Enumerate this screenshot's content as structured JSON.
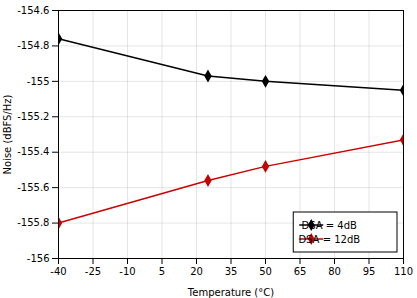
{
  "chart_data": {
    "type": "line",
    "x": [
      -40,
      25,
      50,
      110
    ],
    "series": [
      {
        "name": "DSA = 4dB",
        "color": "#000000",
        "marker": "diamond",
        "line_style": "solid",
        "values": [
          -154.76,
          -154.97,
          -155.0,
          -155.05
        ]
      },
      {
        "name": "DSA = 12dB",
        "color": "#cc0000",
        "marker": "diamond",
        "line_style": "solid",
        "values": [
          -155.8,
          -155.56,
          -155.48,
          -155.33
        ]
      }
    ],
    "xlabel": "Temperature (°C)",
    "ylabel": "Noise (dBFS/Hz)",
    "xlim": [
      -40,
      110
    ],
    "ylim": [
      -156,
      -154.6
    ],
    "xticks": [
      -40,
      -25,
      -10,
      5,
      20,
      35,
      50,
      65,
      80,
      95,
      110
    ],
    "yticks": [
      -156,
      -155.8,
      -155.6,
      -155.4,
      -155.2,
      -155,
      -154.8,
      -154.6
    ],
    "grid": true,
    "legend": "lower right"
  }
}
